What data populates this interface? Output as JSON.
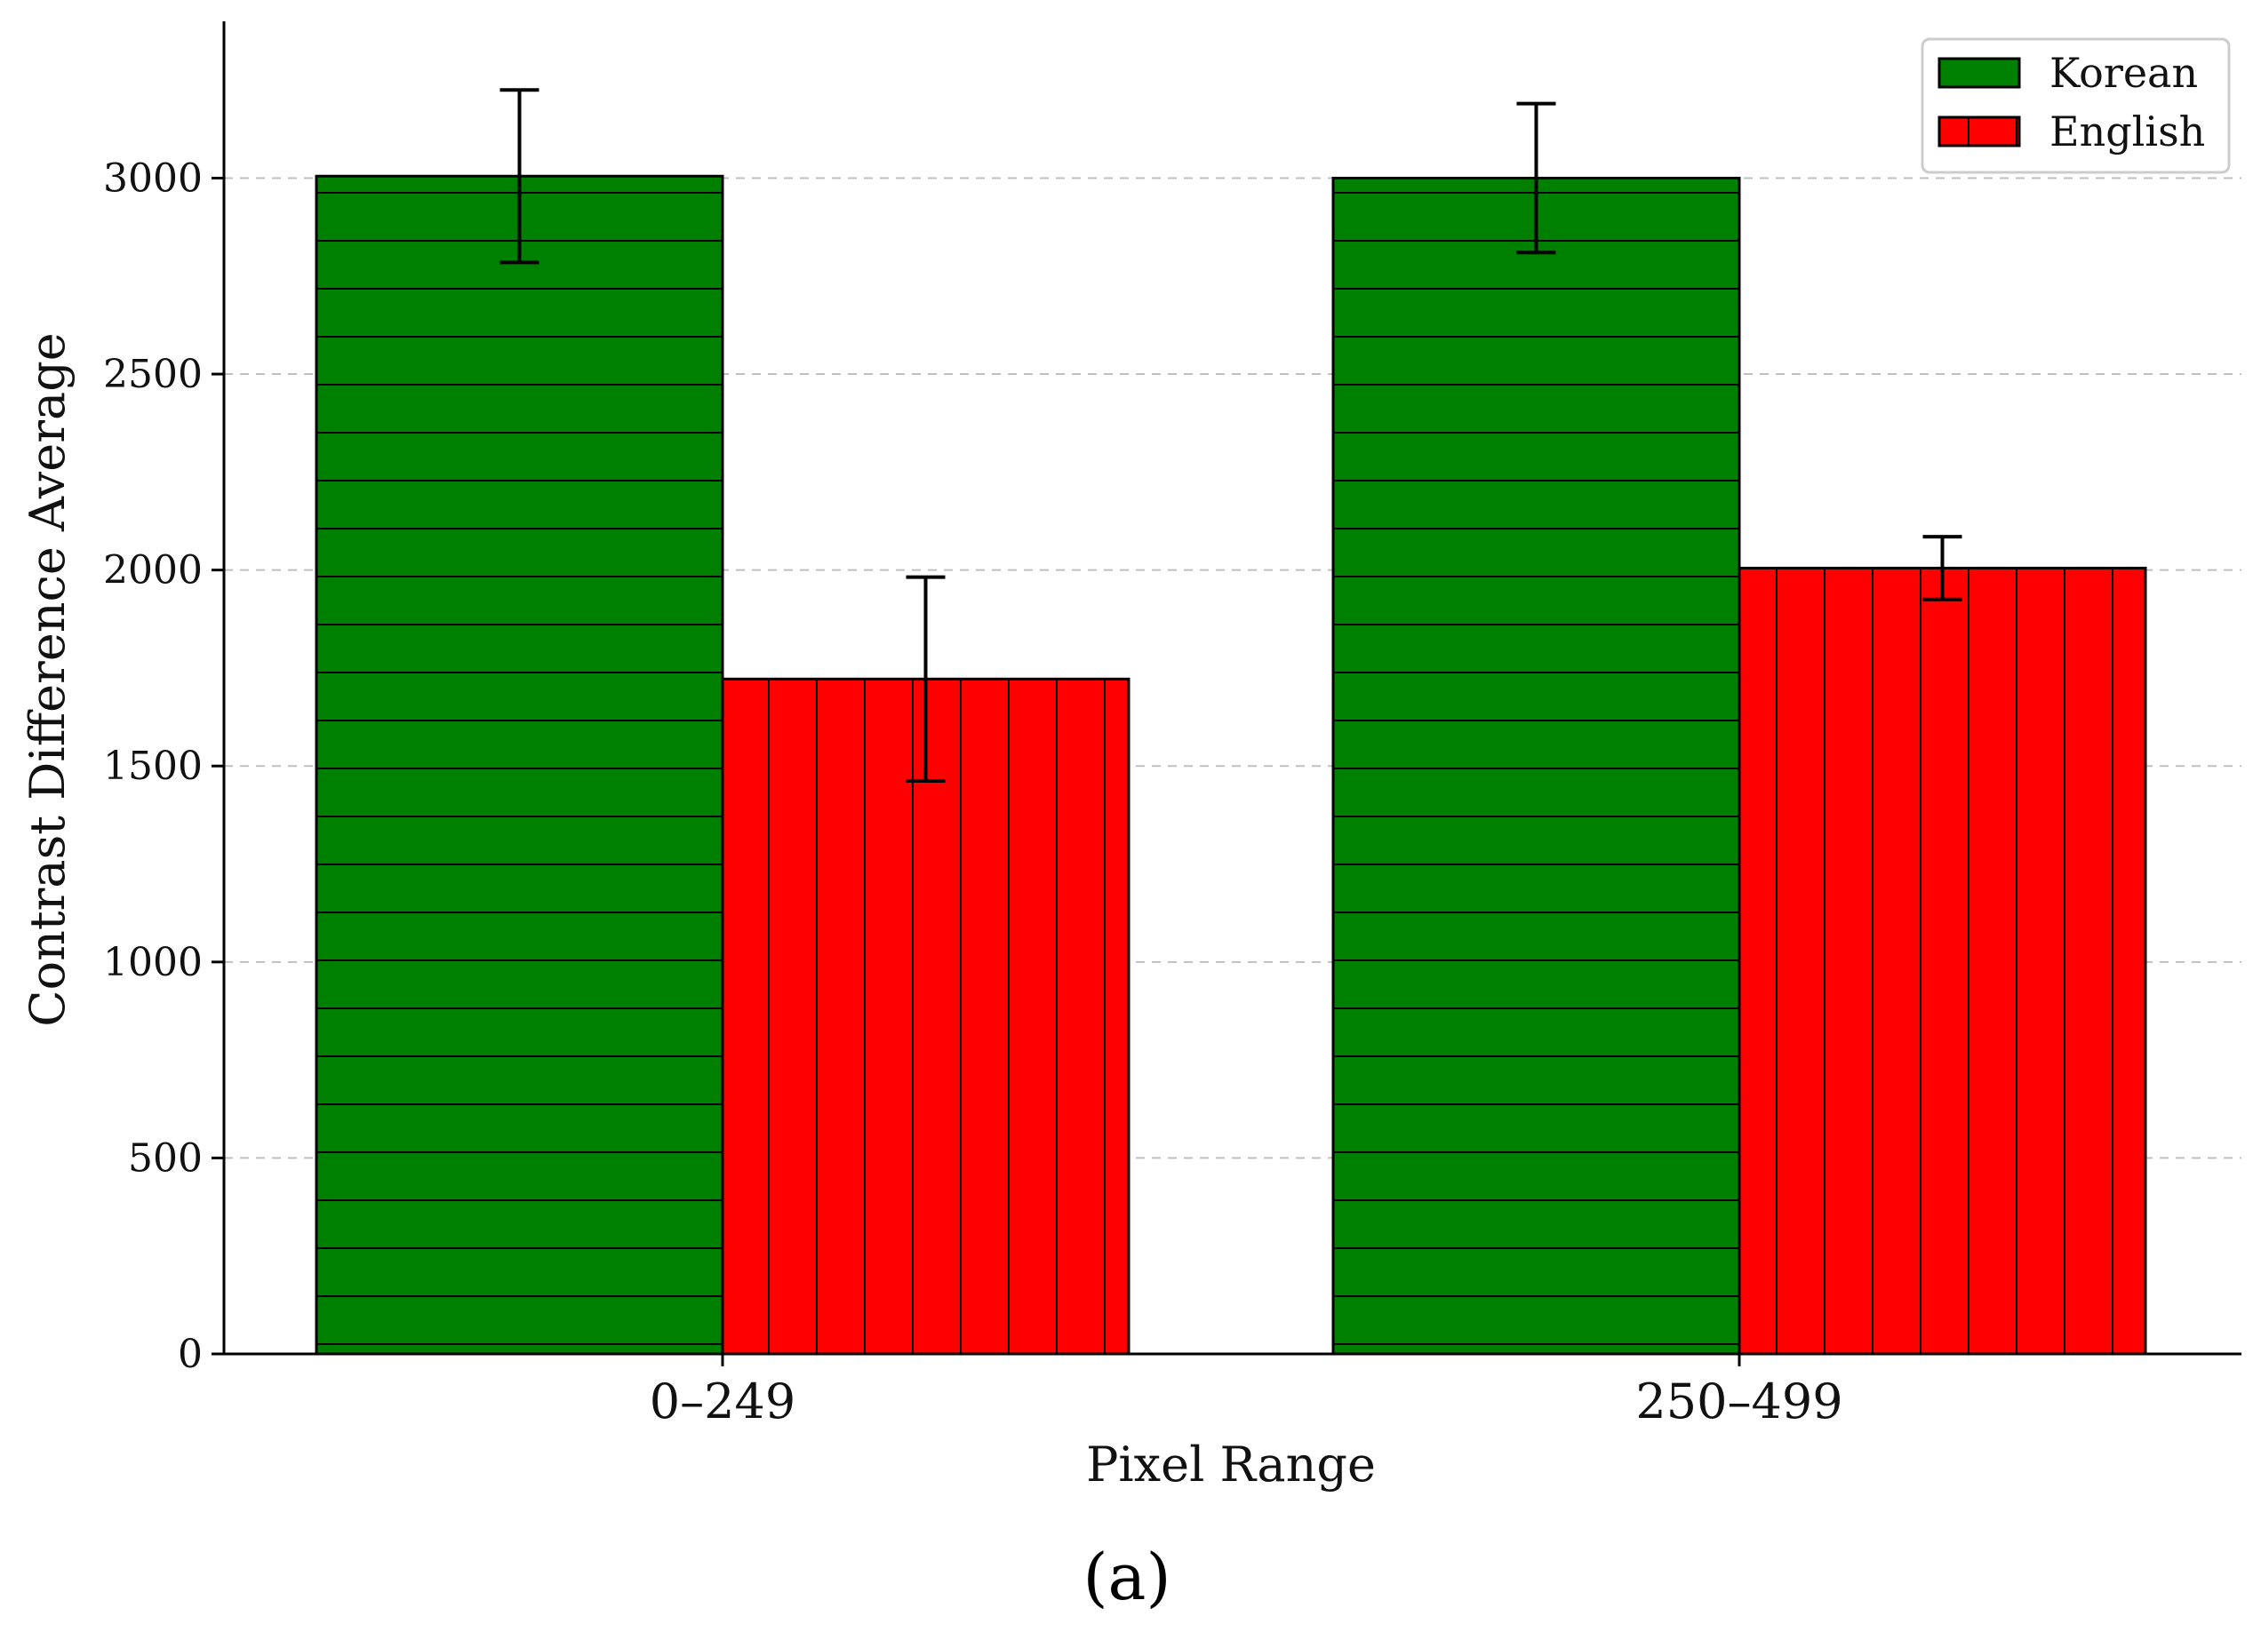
{
  "chart_data": {
    "type": "bar",
    "title": "",
    "caption": "(a)",
    "xlabel": "Pixel Range",
    "ylabel": "Contrast Difference Average",
    "categories": [
      "0–249",
      "250–499"
    ],
    "ylim": [
      0,
      3400
    ],
    "yticks": [
      0,
      500,
      1000,
      1500,
      2000,
      2500,
      3000
    ],
    "ytick_labels": [
      "0",
      "500",
      "1000",
      "1500",
      "2000",
      "2500",
      "3000"
    ],
    "grid": "horizontal dashed",
    "legend_position": "top-right",
    "series": [
      {
        "name": "Korean",
        "color": "#008000",
        "hatch": "horizontal",
        "values": [
          3005,
          3000
        ],
        "errors": [
          220,
          190
        ]
      },
      {
        "name": "English",
        "color": "#ff0000",
        "hatch": "vertical",
        "values": [
          1722,
          2005
        ],
        "errors": [
          260,
          80
        ]
      }
    ]
  }
}
